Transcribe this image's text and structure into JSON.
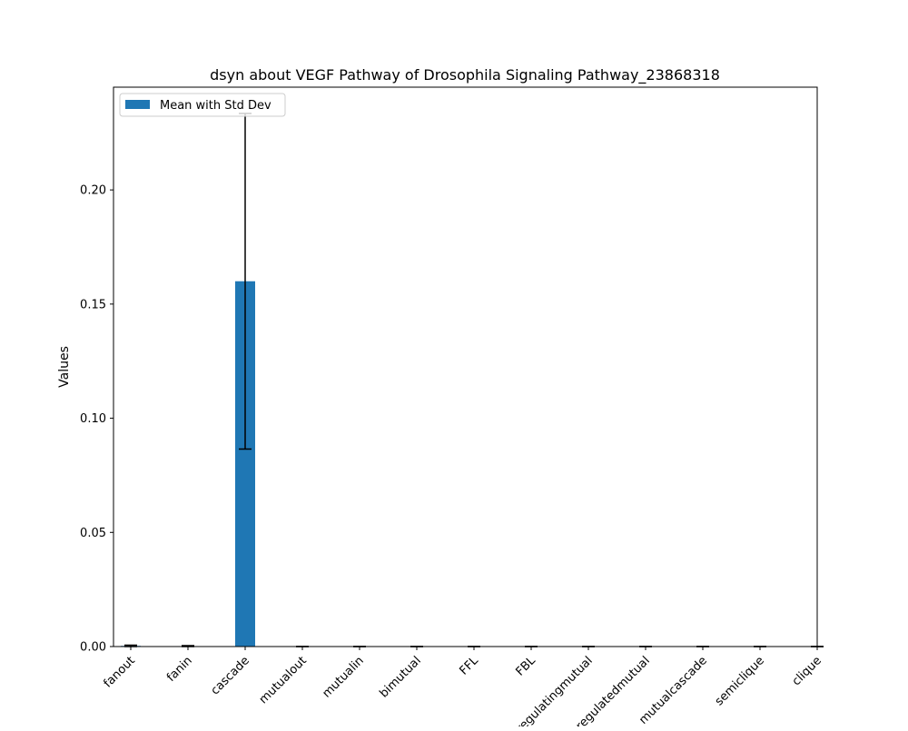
{
  "chart_data": {
    "type": "bar",
    "title": "dsyn about VEGF Pathway of Drosophila Signaling Pathway_23868318",
    "xlabel": "",
    "ylabel": "Values",
    "categories": [
      "fanout",
      "fanin",
      "cascade",
      "mutualout",
      "mutualin",
      "bimutual",
      "FFL",
      "FBL",
      "regulatingmutual",
      "regulatedmutual",
      "mutualcascade",
      "semiclique",
      "clique"
    ],
    "series": [
      {
        "name": "Mean with Std Dev",
        "values": [
          0.0003,
          0.0002,
          0.16,
          0,
          0,
          0,
          0,
          0,
          0,
          0,
          0,
          0,
          0
        ],
        "errors": [
          0.0003,
          0.0002,
          0.0735,
          0,
          0,
          0,
          0,
          0,
          0,
          0,
          0,
          0,
          0
        ]
      }
    ],
    "ylim": [
      0,
      0.245
    ],
    "yticks": [
      0.0,
      0.05,
      0.1,
      0.15,
      0.2
    ],
    "ytick_labels": [
      "0.00",
      "0.05",
      "0.10",
      "0.15",
      "0.20"
    ],
    "grid": false,
    "legend": "top-left",
    "colors": {
      "bar": "#1f77b4",
      "error": "#000000"
    }
  }
}
